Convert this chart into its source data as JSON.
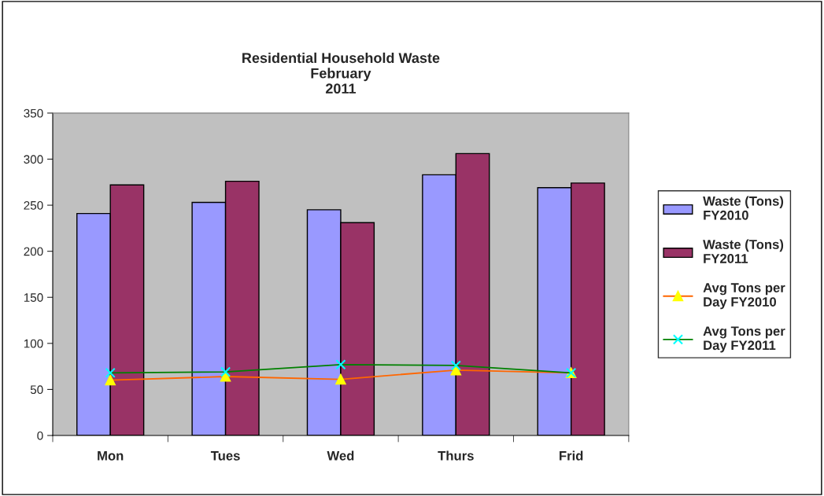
{
  "chart_data": {
    "type": "bar",
    "title": "Residential Household Waste\nFebruary\n2011",
    "categories": [
      "Mon",
      "Tues",
      "Wed",
      "Thurs",
      "Frid"
    ],
    "series": [
      {
        "name": "Waste (Tons)\nFY2010",
        "color": "#9999ff",
        "values": [
          241,
          253,
          245,
          283,
          269
        ]
      },
      {
        "name": "Waste (Tons)\nFY2011",
        "color": "#993366",
        "values": [
          272,
          276,
          231,
          306,
          274
        ]
      },
      {
        "name": "Avg Tons per\nDay FY2010",
        "type": "line",
        "color": "#ff6600",
        "marker": "triangle",
        "values": [
          60,
          64,
          61,
          71,
          68
        ]
      },
      {
        "name": "Avg Tons per\nDay FY2011",
        "type": "line",
        "color": "#008000",
        "marker": "cross",
        "values": [
          68,
          69,
          77,
          76,
          68
        ]
      }
    ],
    "ylim": [
      0,
      350
    ],
    "yticks": [
      0,
      50,
      100,
      150,
      200,
      250,
      300,
      350
    ],
    "grid": false,
    "legend": "right"
  }
}
